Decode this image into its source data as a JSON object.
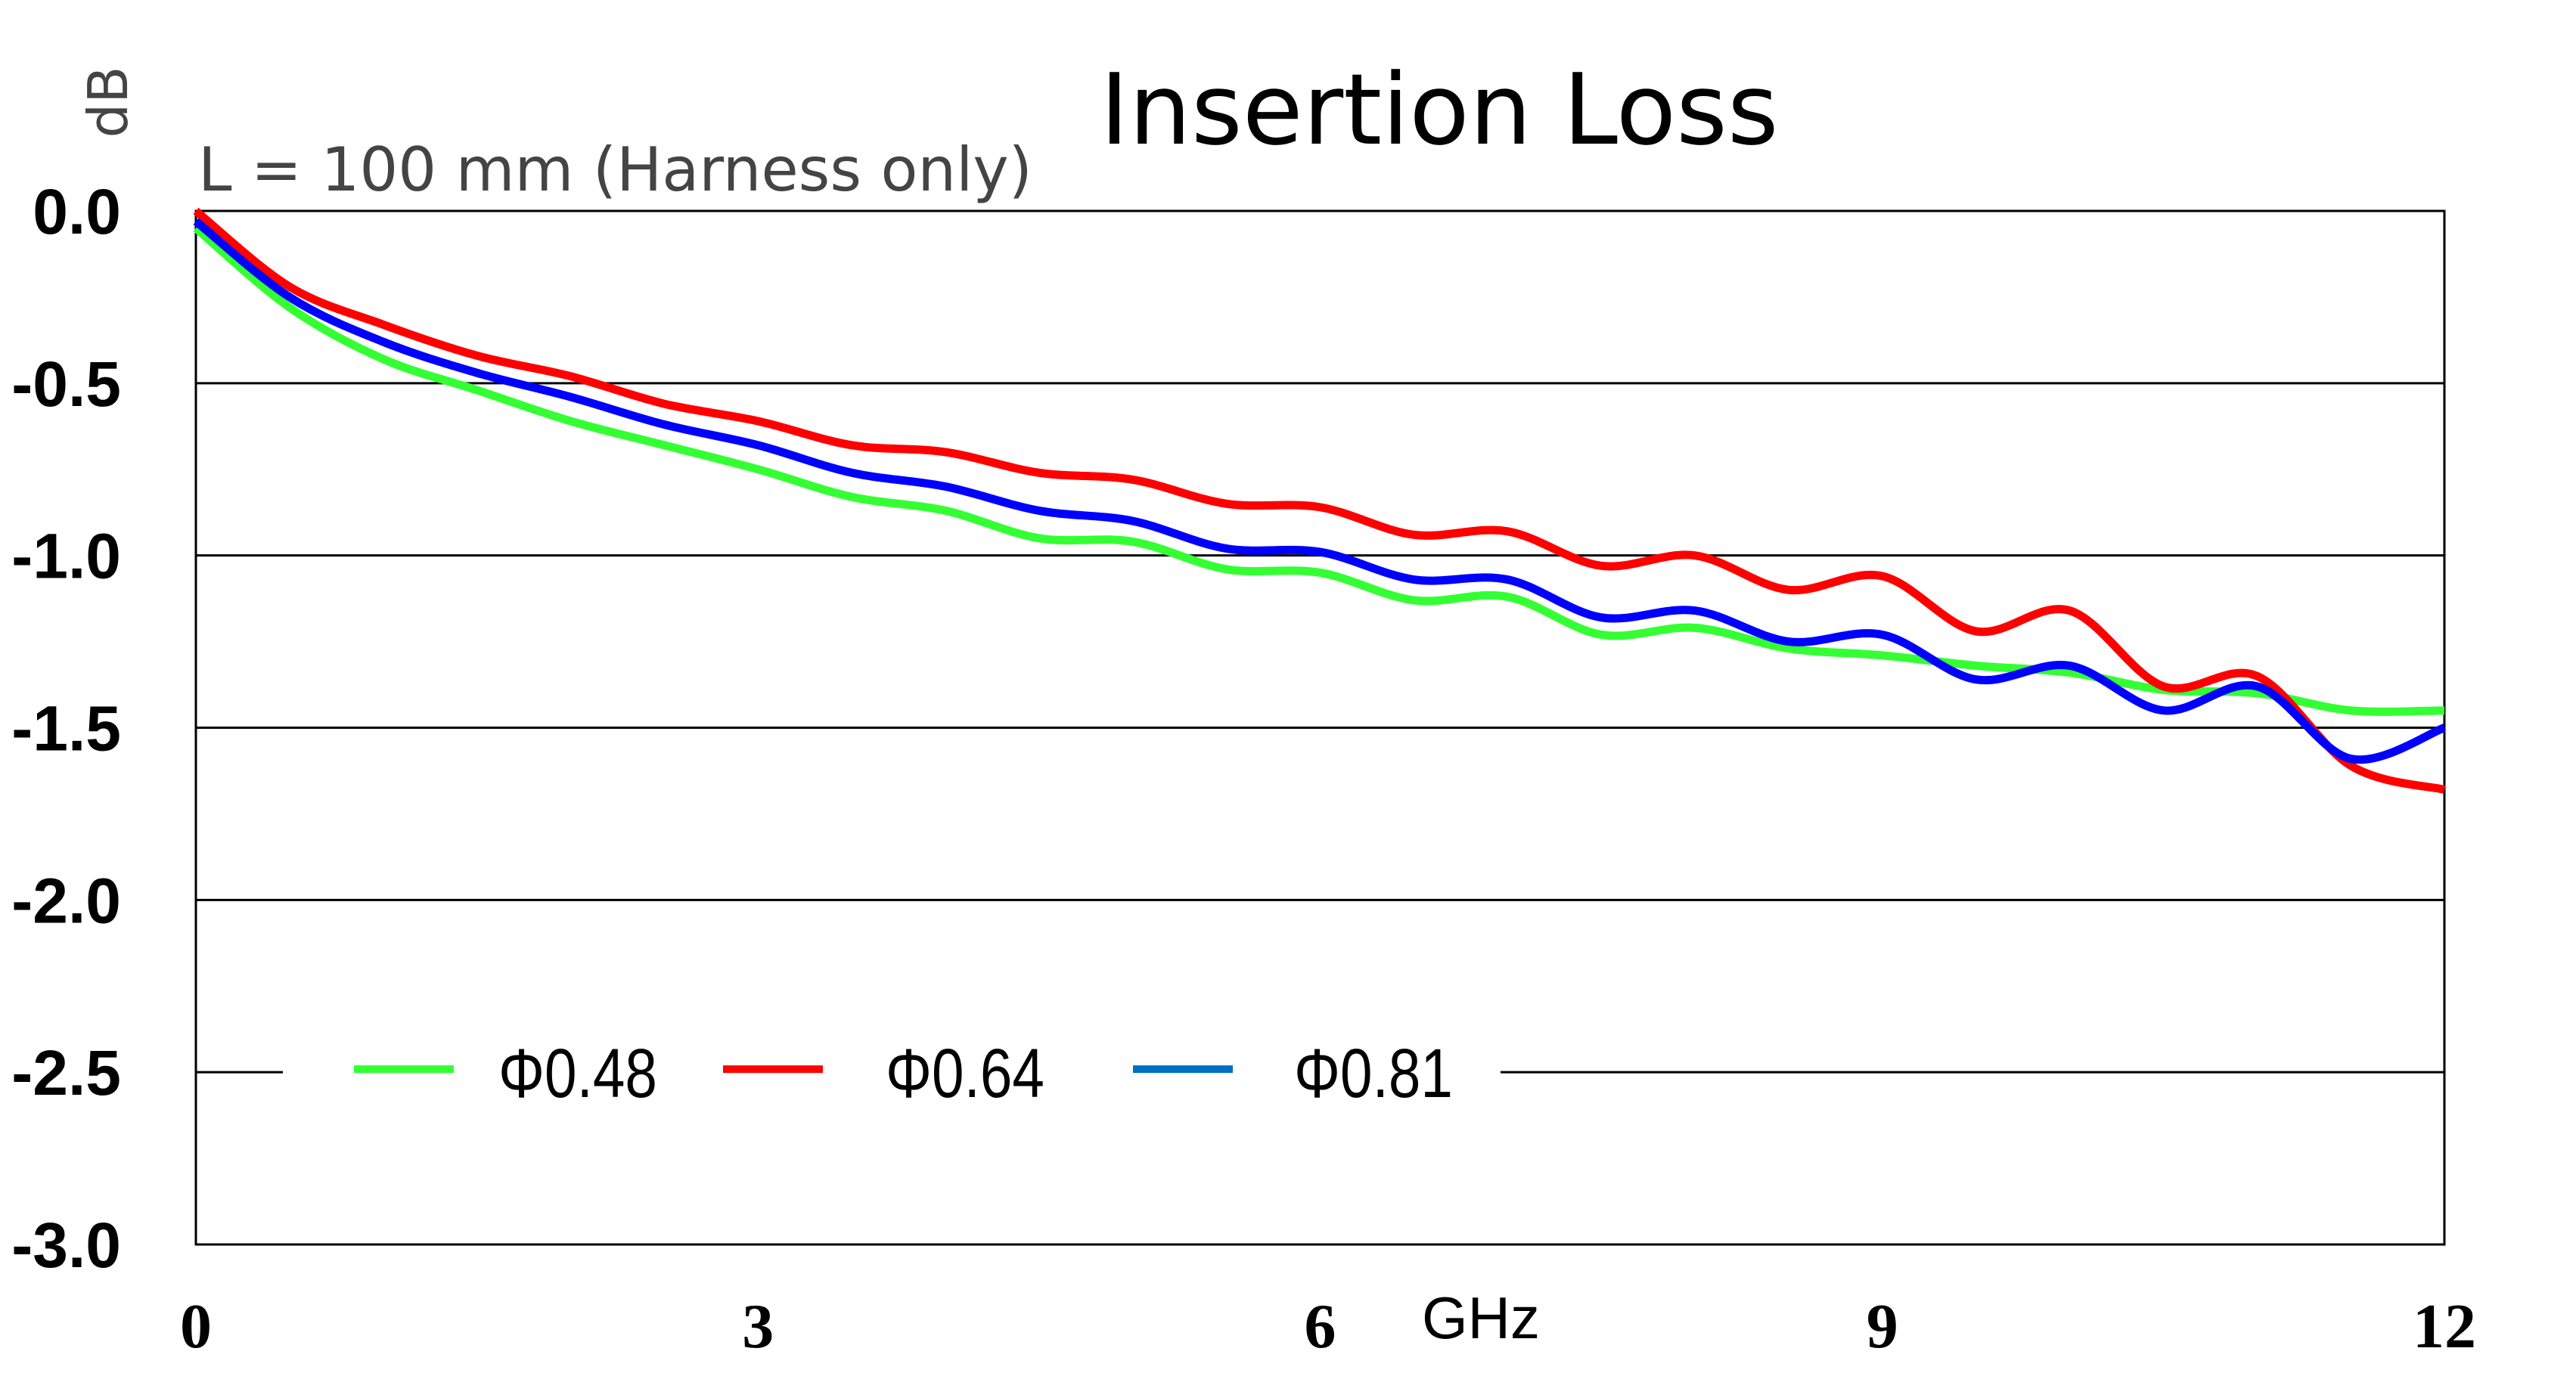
{
  "chart_data": {
    "type": "line",
    "title": "Insertion Loss",
    "subtitle": "L = 100 mm (Harness only)",
    "xlabel": "GHz",
    "ylabel": "dB",
    "xlim": [
      0,
      12
    ],
    "ylim": [
      -3.0,
      0.0
    ],
    "xticks": [
      "0",
      "3",
      "6",
      "9",
      "12"
    ],
    "yticks": [
      "0.0",
      "-0.5",
      "-1.0",
      "-1.5",
      "-2.0",
      "-2.5",
      "-3.0"
    ],
    "grid": "horizontal",
    "legend_placement": "bottom-inside",
    "x": [
      0,
      0.5,
      1,
      1.5,
      2,
      2.5,
      3,
      3.5,
      4,
      4.5,
      5,
      5.5,
      6,
      6.5,
      7,
      7.5,
      8,
      8.5,
      9,
      9.5,
      10,
      10.5,
      11,
      11.5,
      12
    ],
    "series": [
      {
        "name": "Φ0.48",
        "color": "#33ff33",
        "values": [
          -0.05,
          -0.28,
          -0.43,
          -0.52,
          -0.61,
          -0.68,
          -0.75,
          -0.83,
          -0.87,
          -0.95,
          -0.96,
          -1.04,
          -1.05,
          -1.13,
          -1.12,
          -1.23,
          -1.21,
          -1.27,
          -1.29,
          -1.32,
          -1.34,
          -1.39,
          -1.4,
          -1.45,
          -1.45
        ]
      },
      {
        "name": "Φ0.64",
        "color": "#ff0000",
        "values": [
          0.0,
          -0.22,
          -0.33,
          -0.42,
          -0.48,
          -0.56,
          -0.61,
          -0.68,
          -0.7,
          -0.76,
          -0.78,
          -0.85,
          -0.86,
          -0.94,
          -0.93,
          -1.03,
          -1.0,
          -1.1,
          -1.06,
          -1.22,
          -1.16,
          -1.38,
          -1.35,
          -1.61,
          -1.68
        ]
      },
      {
        "name": "Φ0.81",
        "color": "#0000ff",
        "legend_color": "#0070c0",
        "values": [
          -0.03,
          -0.25,
          -0.38,
          -0.47,
          -0.54,
          -0.62,
          -0.68,
          -0.76,
          -0.8,
          -0.87,
          -0.9,
          -0.98,
          -0.99,
          -1.07,
          -1.07,
          -1.18,
          -1.16,
          -1.25,
          -1.23,
          -1.36,
          -1.32,
          -1.45,
          -1.38,
          -1.59,
          -1.5
        ]
      }
    ]
  }
}
